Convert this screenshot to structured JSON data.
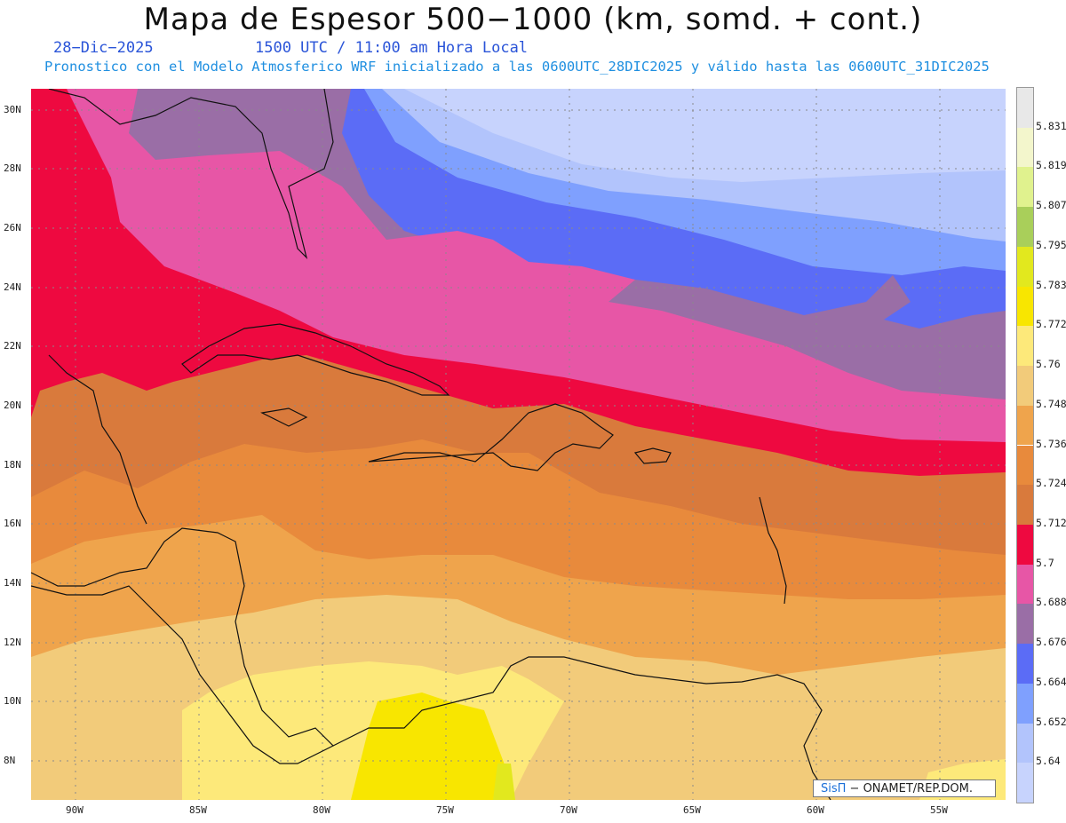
{
  "header": {
    "title": "Mapa de Espesor 500−1000 (km, somd. + cont.)",
    "date": "28−Dic−2025",
    "time": "1500 UTC / 11:00 am Hora Local",
    "forecast_info": "Pronostico con el Modelo Atmosferico WRF inicializado a las 0600UTC_28DIC2025 y válido hasta las  0600UTC_31DIC2025"
  },
  "axes": {
    "lat_labels": [
      "30N",
      "28N",
      "26N",
      "24N",
      "22N",
      "20N",
      "18N",
      "16N",
      "14N",
      "12N",
      "10N",
      "8N"
    ],
    "lon_labels": [
      "90W",
      "85W",
      "80W",
      "75W",
      "70W",
      "65W",
      "60W",
      "55W"
    ]
  },
  "legend": {
    "values": [
      "5.831",
      "5.819",
      "5.807",
      "5.795",
      "5.783",
      "5.772",
      "5.76",
      "5.748",
      "5.736",
      "5.724",
      "5.712",
      "5.7",
      "5.688",
      "5.676",
      "5.664",
      "5.652",
      "5.64"
    ],
    "colors": [
      "#e8e8e8",
      "#f3f6cc",
      "#e0f28e",
      "#a9cf5a",
      "#e2e81e",
      "#f8e600",
      "#fde97a",
      "#f2cb7a",
      "#efa44c",
      "#e88a3c",
      "#d97a3c",
      "#ee0940",
      "#e756a6",
      "#9a6ea6",
      "#5b6cf6",
      "#7fa0fe",
      "#b2c4fc",
      "#c7d3fd"
    ]
  },
  "credit": {
    "logo": "SisΠ",
    "text": " − ONAMET/REP.DOM."
  }
}
